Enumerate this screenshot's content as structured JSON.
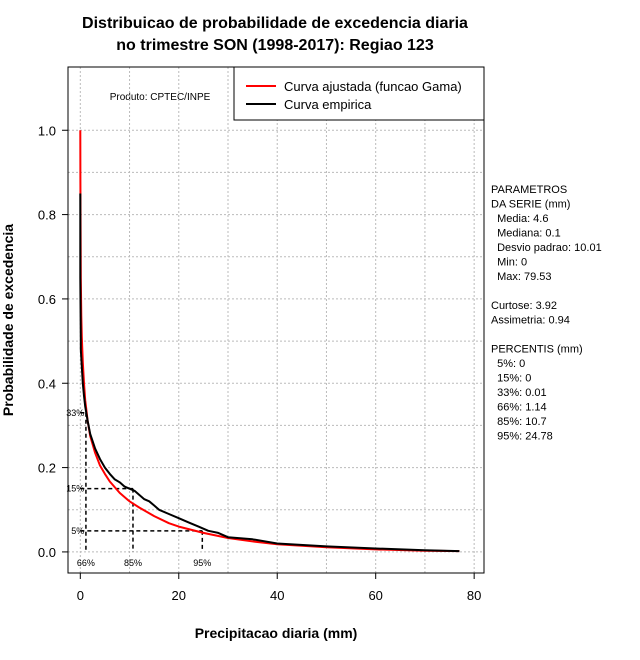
{
  "chart_data": {
    "type": "line",
    "title_line1": "Distribuicao de probabilidade de excedencia diaria",
    "title_line2": "no trimestre SON (1998-2017): Regiao 123",
    "xlabel": "Precipitacao diaria (mm)",
    "ylabel": "Probabilidade de excedencia",
    "xlim": [
      -2.5,
      82
    ],
    "ylim": [
      -0.05,
      1.15
    ],
    "xticks": [
      0,
      20,
      40,
      60,
      80
    ],
    "yticks": [
      0.0,
      0.2,
      0.4,
      0.6,
      0.8,
      1.0
    ],
    "ytick_labels": [
      "0.0",
      "0.2",
      "0.4",
      "0.6",
      "0.8",
      "1.0"
    ],
    "grid": true,
    "product_label": "Produto: CPTEC/INPE",
    "legend": {
      "position": "top-right",
      "entries": [
        {
          "label": "Curva ajustada (funcao Gama)",
          "color": "#ff0000"
        },
        {
          "label": "Curva empirica",
          "color": "#000000"
        }
      ]
    },
    "series": [
      {
        "name": "Curva ajustada (funcao Gama)",
        "color": "#ff0000",
        "x": [
          0.0,
          0.02,
          0.05,
          0.1,
          0.2,
          0.3,
          0.5,
          0.75,
          1.0,
          1.5,
          2.0,
          3.0,
          4.0,
          5.0,
          6.0,
          8.0,
          10.0,
          12.0,
          15.0,
          18.0,
          20.0,
          25.0,
          30.0,
          35.0,
          40.0,
          50.0,
          60.0,
          70.0,
          77.0
        ],
        "y": [
          1.0,
          0.88,
          0.76,
          0.65,
          0.56,
          0.51,
          0.45,
          0.4,
          0.36,
          0.31,
          0.275,
          0.235,
          0.205,
          0.185,
          0.167,
          0.14,
          0.12,
          0.105,
          0.085,
          0.068,
          0.06,
          0.045,
          0.033,
          0.025,
          0.018,
          0.011,
          0.006,
          0.003,
          0.002
        ]
      },
      {
        "name": "Curva empirica",
        "color": "#000000",
        "x": [
          0.0,
          0.0,
          0.1,
          0.1,
          0.3,
          0.5,
          0.75,
          1.0,
          1.5,
          2.0,
          3.0,
          4.0,
          5.0,
          6.0,
          7.0,
          8.0,
          9.0,
          10.0,
          11.0,
          12.0,
          13.0,
          14.0,
          15.0,
          16.0,
          18.0,
          20.0,
          22.0,
          24.0,
          26.0,
          28.0,
          30.0,
          35.0,
          40.0,
          50.0,
          60.0,
          70.0,
          77.0
        ],
        "y": [
          0.85,
          0.65,
          0.5,
          0.48,
          0.44,
          0.4,
          0.37,
          0.345,
          0.31,
          0.28,
          0.245,
          0.22,
          0.2,
          0.185,
          0.172,
          0.165,
          0.155,
          0.15,
          0.145,
          0.135,
          0.125,
          0.12,
          0.11,
          0.1,
          0.09,
          0.08,
          0.07,
          0.06,
          0.05,
          0.045,
          0.035,
          0.03,
          0.02,
          0.013,
          0.008,
          0.004,
          0.002
        ]
      }
    ],
    "percentile_markers": [
      {
        "prob": 0.33,
        "x": 1.14,
        "prob_label": "33%",
        "x_label": "66%"
      },
      {
        "prob": 0.15,
        "x": 10.7,
        "prob_label": "15%",
        "x_label": "85%"
      },
      {
        "prob": 0.05,
        "x": 24.78,
        "prob_label": "5%",
        "x_label": "95%"
      }
    ],
    "side_panel": [
      "PARAMETROS",
      "DA SERIE (mm)",
      "  Media: 4.6",
      "  Mediana: 0.1",
      "  Desvio padrao: 10.01",
      "  Min: 0",
      "  Max: 79.53",
      "",
      "Curtose: 3.92",
      "Assimetria: 0.94",
      "",
      "PERCENTIS (mm)",
      "  5%: 0",
      "  15%: 0",
      "  33%: 0.01",
      "  66%: 1.14",
      "  85%: 10.7",
      "  95%: 24.78"
    ]
  }
}
